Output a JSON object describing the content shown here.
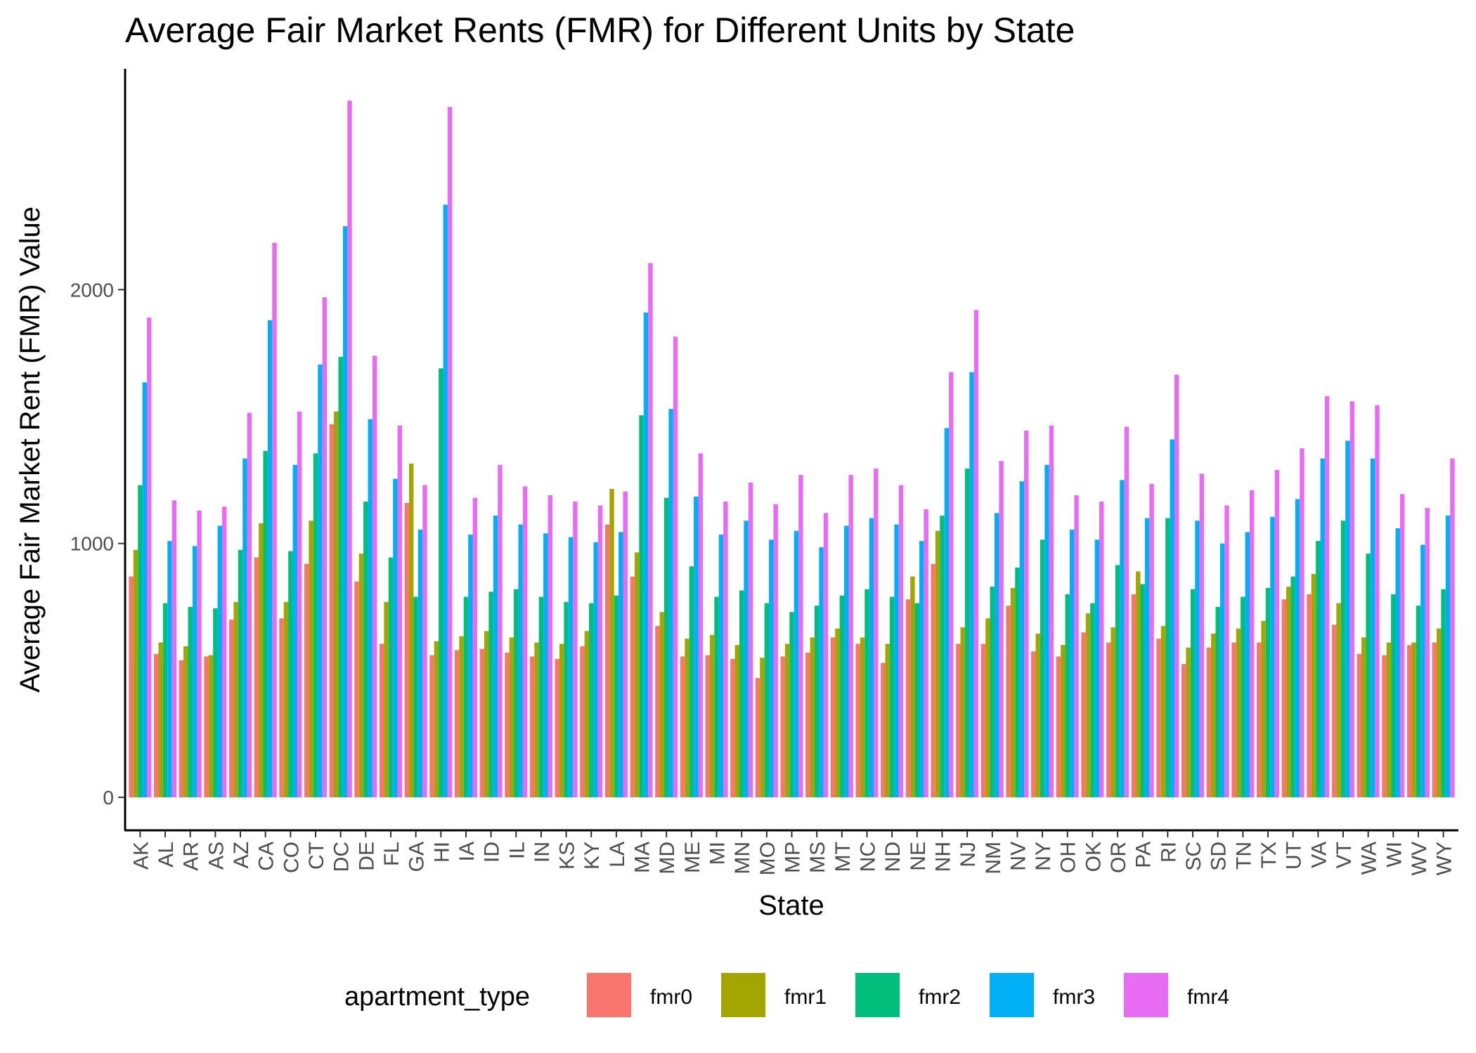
{
  "chart_data": {
    "type": "bar",
    "title": "Average Fair Market Rents (FMR) for Different Units by State",
    "xlabel": "State",
    "ylabel": "Average Fair Market Rent (FMR) Value",
    "ylim": [
      -130,
      2870
    ],
    "yticks": [
      0,
      1000,
      2000
    ],
    "grid": false,
    "legend_position": "bottom",
    "legend_title": "apartment_type",
    "categories": [
      "AK",
      "AL",
      "AR",
      "AS",
      "AZ",
      "CA",
      "CO",
      "CT",
      "DC",
      "DE",
      "FL",
      "GA",
      "HI",
      "IA",
      "ID",
      "IL",
      "IN",
      "KS",
      "KY",
      "LA",
      "MA",
      "MD",
      "ME",
      "MI",
      "MN",
      "MO",
      "MP",
      "MS",
      "MT",
      "NC",
      "ND",
      "NE",
      "NH",
      "NJ",
      "NM",
      "NV",
      "NY",
      "OH",
      "OK",
      "OR",
      "PA",
      "RI",
      "SC",
      "SD",
      "TN",
      "TX",
      "UT",
      "VA",
      "VT",
      "WA",
      "WI",
      "WV",
      "WY"
    ],
    "series": [
      {
        "name": "fmr0",
        "color": "#F8766D",
        "values": [
          870,
          565,
          540,
          555,
          700,
          945,
          705,
          920,
          1470,
          850,
          605,
          1160,
          560,
          580,
          585,
          570,
          555,
          545,
          595,
          1075,
          870,
          675,
          555,
          560,
          545,
          470,
          555,
          570,
          630,
          605,
          530,
          780,
          920,
          605,
          605,
          755,
          575,
          555,
          650,
          610,
          800,
          625,
          525,
          590,
          610,
          610,
          780,
          800,
          680,
          565,
          560,
          600,
          610
        ]
      },
      {
        "name": "fmr1",
        "color": "#A3A500",
        "values": [
          975,
          610,
          595,
          560,
          770,
          1080,
          770,
          1090,
          1520,
          960,
          770,
          1315,
          615,
          635,
          655,
          630,
          610,
          605,
          655,
          1215,
          965,
          730,
          625,
          640,
          600,
          550,
          605,
          630,
          665,
          630,
          605,
          870,
          1050,
          670,
          705,
          825,
          645,
          600,
          725,
          670,
          890,
          675,
          590,
          645,
          665,
          695,
          830,
          880,
          765,
          630,
          610,
          610,
          665
        ]
      },
      {
        "name": "fmr2",
        "color": "#00BF7D",
        "values": [
          1230,
          765,
          750,
          745,
          975,
          1365,
          970,
          1355,
          1735,
          1165,
          945,
          790,
          1690,
          790,
          810,
          820,
          790,
          770,
          765,
          795,
          1505,
          1180,
          910,
          790,
          815,
          765,
          730,
          755,
          795,
          820,
          790,
          765,
          1110,
          1295,
          830,
          905,
          1015,
          800,
          765,
          915,
          840,
          1100,
          820,
          750,
          790,
          825,
          870,
          1010,
          1090,
          960,
          800,
          755,
          820
        ]
      },
      {
        "name": "fmr3",
        "color": "#00B0F6",
        "values": [
          1635,
          1010,
          990,
          1070,
          1335,
          1880,
          1310,
          1705,
          2250,
          1490,
          1255,
          1055,
          2335,
          1035,
          1110,
          1075,
          1040,
          1025,
          1005,
          1045,
          1910,
          1530,
          1185,
          1035,
          1090,
          1015,
          1050,
          985,
          1070,
          1100,
          1075,
          1010,
          1455,
          1675,
          1120,
          1245,
          1310,
          1055,
          1015,
          1250,
          1100,
          1410,
          1090,
          1000,
          1045,
          1105,
          1175,
          1335,
          1405,
          1335,
          1060,
          995,
          1110
        ]
      },
      {
        "name": "fmr4",
        "color": "#E76BF3",
        "values": [
          1890,
          1170,
          1130,
          1145,
          1515,
          2185,
          1520,
          1970,
          2745,
          1740,
          1465,
          1230,
          2720,
          1180,
          1310,
          1225,
          1190,
          1165,
          1150,
          1205,
          2105,
          1815,
          1355,
          1165,
          1240,
          1155,
          1270,
          1120,
          1270,
          1295,
          1230,
          1135,
          1675,
          1920,
          1325,
          1445,
          1465,
          1190,
          1165,
          1460,
          1235,
          1665,
          1275,
          1150,
          1210,
          1290,
          1375,
          1580,
          1560,
          1545,
          1195,
          1140,
          1335
        ]
      }
    ]
  }
}
